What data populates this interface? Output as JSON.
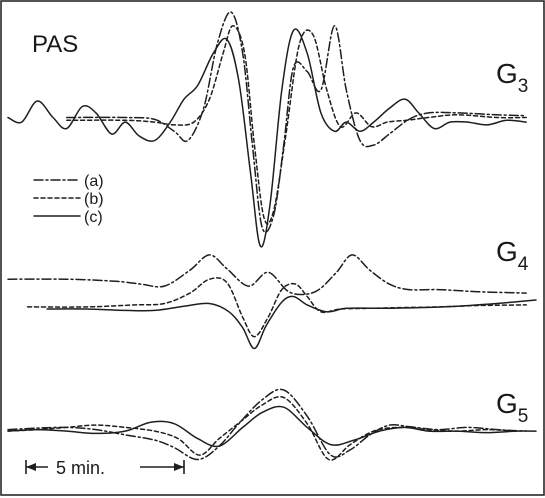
{
  "chart_data": {
    "type": "line",
    "title": "PAS",
    "scale_bar": {
      "label": "5 min.",
      "duration_min": 5
    },
    "legend": {
      "placement": "left-middle",
      "entries": [
        {
          "key": "a",
          "label": "(a)",
          "style": "dash-dot"
        },
        {
          "key": "b",
          "label": "(b)",
          "style": "dashed"
        },
        {
          "key": "c",
          "label": "(c)",
          "style": "solid"
        }
      ]
    },
    "x_domain_min": [
      0,
      27
    ],
    "panels": [
      {
        "label_base": "G",
        "label_sub": "3",
        "y_domain": [
          -1.4,
          1.15
        ],
        "series": [
          {
            "key": "a",
            "t": [
              3.0,
              6.0,
              7.5,
              8.5,
              9.2,
              10.0,
              10.7,
              11.4,
              12.0,
              12.5,
              13.0,
              13.6,
              14.1,
              14.6,
              15.3,
              16.0,
              16.7,
              17.3,
              18.0,
              18.7,
              19.5,
              20.5,
              21.5,
              23.0,
              25.0,
              26.5
            ],
            "v": [
              0.0,
              0.0,
              -0.02,
              -0.15,
              -0.25,
              0.1,
              0.8,
              1.15,
              0.7,
              -0.3,
              -1.2,
              -1.05,
              -0.3,
              0.55,
              0.5,
              0.3,
              1.0,
              0.3,
              -0.25,
              -0.3,
              -0.18,
              -0.02,
              0.05,
              0.05,
              0.03,
              0.02
            ]
          },
          {
            "key": "b",
            "t": [
              3.0,
              6.0,
              7.5,
              8.5,
              9.5,
              10.3,
              11.0,
              11.5,
              12.1,
              12.6,
              13.1,
              13.6,
              14.2,
              14.9,
              15.6,
              16.3,
              17.0,
              17.8,
              18.6,
              19.4,
              20.4,
              21.5,
              23.0,
              25.0,
              26.5
            ],
            "v": [
              -0.03,
              -0.03,
              -0.05,
              -0.08,
              -0.05,
              0.2,
              0.7,
              1.0,
              0.7,
              -0.3,
              -1.1,
              -1.0,
              -0.2,
              0.8,
              0.9,
              0.3,
              -0.1,
              0.05,
              -0.1,
              -0.05,
              -0.03,
              0.0,
              0.03,
              0.0,
              0.0
            ]
          },
          {
            "key": "c",
            "t": [
              0.0,
              0.7,
              1.5,
              2.3,
              3.0,
              3.8,
              4.5,
              5.3,
              6.0,
              6.7,
              7.5,
              8.3,
              9.0,
              9.7,
              10.5,
              11.2,
              11.8,
              12.4,
              12.9,
              13.4,
              14.0,
              14.6,
              15.3,
              16.0,
              16.7,
              17.3,
              18.0,
              18.7,
              19.5,
              20.3,
              21.0,
              21.8,
              22.6,
              23.5,
              24.5,
              25.5,
              26.5
            ],
            "v": [
              0.0,
              -0.05,
              0.18,
              0.0,
              -0.12,
              0.12,
              0.05,
              -0.18,
              -0.05,
              -0.2,
              -0.25,
              -0.05,
              0.2,
              0.35,
              0.7,
              0.85,
              0.4,
              -0.6,
              -1.4,
              -0.95,
              0.3,
              0.95,
              0.7,
              0.05,
              -0.15,
              -0.05,
              -0.15,
              -0.05,
              0.1,
              0.2,
              0.05,
              -0.12,
              -0.05,
              -0.05,
              -0.08,
              -0.03,
              -0.05
            ]
          }
        ]
      },
      {
        "label_base": "G",
        "label_sub": "4",
        "y_domain": [
          -0.8,
          0.7
        ],
        "series": [
          {
            "key": "a",
            "t": [
              0.0,
              3.0,
              5.5,
              6.8,
              8.0,
              9.3,
              10.3,
              11.2,
              12.3,
              13.3,
              14.3,
              15.1,
              15.9,
              16.8,
              17.6,
              18.5,
              19.5,
              20.5,
              22.0,
              24.0,
              26.5
            ],
            "v": [
              0.25,
              0.25,
              0.22,
              0.18,
              0.15,
              0.38,
              0.6,
              0.4,
              0.15,
              0.35,
              0.08,
              0.03,
              0.1,
              0.35,
              0.6,
              0.38,
              0.18,
              0.1,
              0.1,
              0.07,
              0.05
            ]
          },
          {
            "key": "b",
            "t": [
              1.0,
              4.0,
              6.5,
              8.0,
              9.3,
              10.3,
              11.2,
              12.0,
              12.6,
              13.3,
              14.0,
              14.7,
              15.3,
              16.0,
              17.0,
              18.5,
              20.0,
              22.0,
              24.0,
              26.5
            ],
            "v": [
              -0.15,
              -0.15,
              -0.12,
              -0.1,
              0.05,
              0.25,
              0.2,
              -0.3,
              -0.58,
              -0.3,
              0.1,
              0.18,
              0.0,
              -0.22,
              -0.18,
              -0.17,
              -0.16,
              -0.15,
              -0.13,
              -0.12
            ]
          },
          {
            "key": "c",
            "t": [
              2.0,
              4.0,
              6.0,
              7.5,
              9.0,
              10.3,
              11.3,
              12.0,
              12.6,
              13.2,
              14.0,
              14.6,
              15.3,
              16.3,
              17.3,
              19.0,
              21.0,
              23.0,
              25.0,
              27.0
            ],
            "v": [
              -0.18,
              -0.18,
              -0.2,
              -0.2,
              -0.14,
              -0.1,
              -0.22,
              -0.45,
              -0.75,
              -0.42,
              -0.08,
              0.0,
              -0.12,
              -0.22,
              -0.17,
              -0.17,
              -0.16,
              -0.14,
              -0.1,
              -0.05
            ]
          }
        ]
      },
      {
        "label_base": "G",
        "label_sub": "5",
        "y_domain": [
          -0.6,
          0.55
        ],
        "series": [
          {
            "key": "a",
            "t": [
              0.0,
              1.5,
              3.0,
              4.5,
              6.0,
              7.5,
              8.5,
              9.7,
              10.8,
              11.8,
              13.0,
              14.1,
              15.3,
              16.5,
              17.5,
              18.5,
              19.5,
              20.5,
              22.0,
              23.5,
              25.0,
              26.5
            ],
            "v": [
              0.02,
              0.04,
              0.05,
              0.02,
              -0.05,
              -0.12,
              -0.22,
              -0.38,
              -0.2,
              0.1,
              0.42,
              0.55,
              0.2,
              -0.32,
              -0.25,
              -0.05,
              0.08,
              0.06,
              0.02,
              0.05,
              0.02,
              0.0
            ]
          },
          {
            "key": "b",
            "t": [
              0.0,
              1.5,
              3.0,
              4.5,
              6.0,
              7.5,
              8.7,
              9.8,
              10.8,
              12.0,
              13.0,
              14.1,
              15.3,
              16.4,
              17.5,
              18.7,
              20.0,
              21.5,
              23.0,
              24.5,
              26.0
            ],
            "v": [
              0.0,
              0.02,
              0.05,
              0.08,
              0.05,
              0.0,
              -0.1,
              -0.32,
              -0.1,
              0.15,
              0.35,
              0.45,
              0.1,
              -0.38,
              -0.18,
              0.0,
              0.05,
              0.02,
              0.0,
              0.02,
              0.0
            ]
          },
          {
            "key": "c",
            "t": [
              0.0,
              1.5,
              3.0,
              4.5,
              6.0,
              7.3,
              8.5,
              9.7,
              10.8,
              12.0,
              13.0,
              14.1,
              15.3,
              16.5,
              17.7,
              19.0,
              20.3,
              21.5,
              23.0,
              24.5,
              26.0,
              27.0
            ],
            "v": [
              0.0,
              0.02,
              0.0,
              -0.03,
              0.0,
              0.12,
              0.1,
              -0.1,
              -0.2,
              0.05,
              0.25,
              0.32,
              0.05,
              -0.18,
              -0.12,
              0.0,
              0.05,
              0.0,
              0.0,
              -0.02,
              0.0,
              0.0
            ]
          }
        ]
      }
    ]
  }
}
